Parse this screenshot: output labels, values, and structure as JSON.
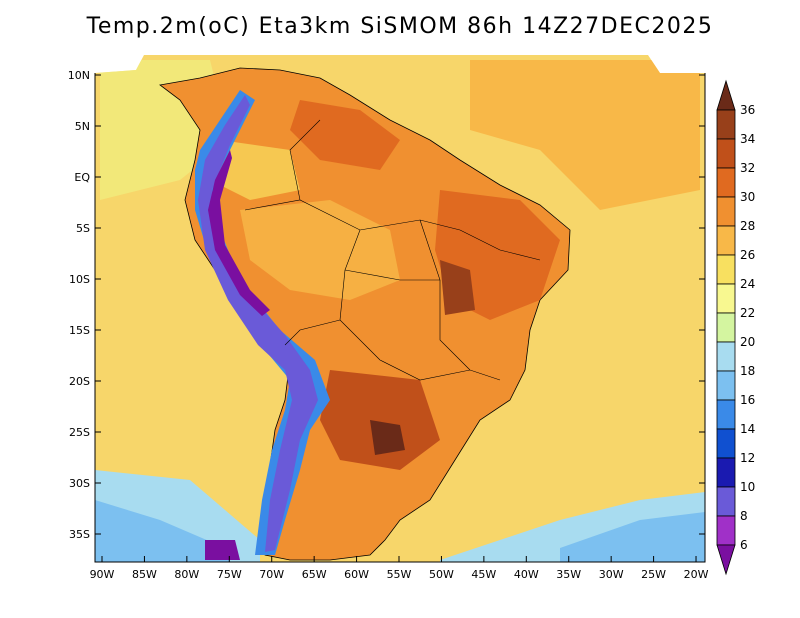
{
  "title": "Temp.2m(oC) Eta3km SiSMOM 86h 14Z27DEC2025",
  "lat_labels": [
    "10N",
    "5N",
    "EQ",
    "5S",
    "10S",
    "15S",
    "20S",
    "25S",
    "30S",
    "35S"
  ],
  "lon_labels": [
    "90W",
    "85W",
    "80W",
    "75W",
    "70W",
    "65W",
    "60W",
    "55W",
    "50W",
    "45W",
    "40W",
    "35W",
    "30W",
    "25W",
    "20W"
  ],
  "colorbar": {
    "labels": [
      "6",
      "8",
      "10",
      "12",
      "14",
      "16",
      "18",
      "20",
      "22",
      "24",
      "26",
      "28",
      "30",
      "32",
      "34",
      "36"
    ],
    "colors": [
      "#7a0fa0",
      "#a030c8",
      "#6a5ad8",
      "#1a1ab0",
      "#1050d0",
      "#3a8ae8",
      "#7cc0f0",
      "#a8dcf0",
      "#d4f5a0",
      "#f8f890",
      "#f8e060",
      "#f8b848",
      "#f09030",
      "#e06a20",
      "#c0501a",
      "#98401a",
      "#6a2a18"
    ]
  },
  "palette": {
    "ocean": "#f7d66a",
    "ocean_cool": "#f0f080",
    "south_cool": "#a8dcf0",
    "south_cold": "#7cc0f0",
    "land_warm": "#f09030",
    "land_hot": "#e06a20",
    "land_hotter": "#c0501a",
    "land_hottest": "#98401a",
    "andes": "#6a5ad8",
    "andes_cold": "#7a0fa0",
    "andes_edge": "#3a8ae8",
    "amazon": "#f8b848"
  }
}
